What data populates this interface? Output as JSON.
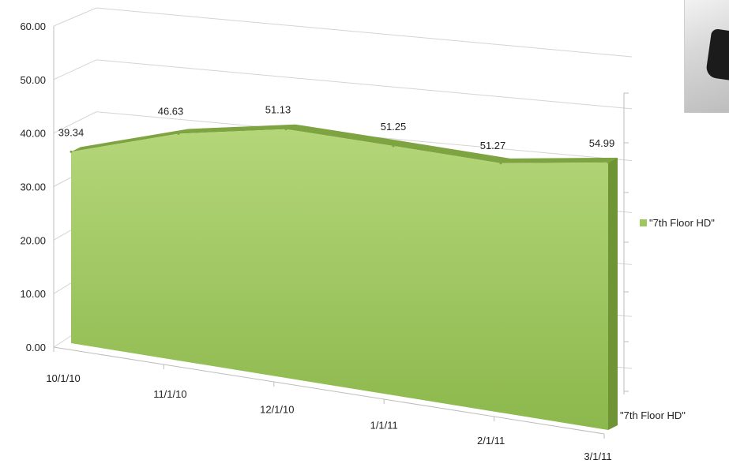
{
  "chart_data": {
    "type": "area",
    "style": "3d-area",
    "x": [
      "10/1/10",
      "11/1/10",
      "12/1/10",
      "1/1/11",
      "2/1/11",
      "3/1/11"
    ],
    "series": [
      {
        "name": "\"7th Floor HD\"",
        "values": [
          39.34,
          46.63,
          51.13,
          51.25,
          51.27,
          54.99
        ],
        "color": "#9fc75f"
      }
    ],
    "data_labels": [
      "39.34",
      "46.63",
      "51.13",
      "51.25",
      "51.27",
      "54.99"
    ],
    "y_ticks": [
      "0.00",
      "10.00",
      "20.00",
      "30.00",
      "40.00",
      "50.00",
      "60.00"
    ],
    "ylim": [
      0,
      60
    ],
    "depth_axis_label": "\"7th Floor HD\"",
    "legend": {
      "position": "right",
      "label": "\"7th Floor HD\"",
      "color": "#9fc75f"
    },
    "grid": true
  },
  "photo": {
    "icon": "photo-thumbnail"
  }
}
